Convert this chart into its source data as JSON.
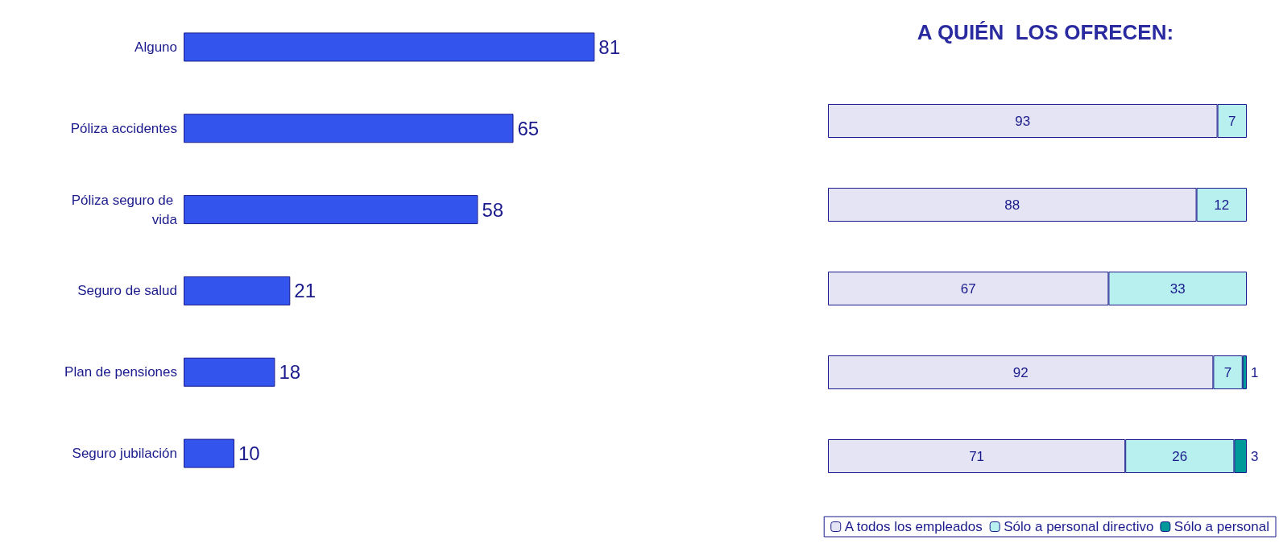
{
  "chart_data": [
    {
      "type": "bar",
      "orientation": "horizontal",
      "categories": [
        "Alguno",
        "Póliza accidentes",
        "Póliza seguro de vida",
        "Seguro de salud",
        "Plan de pensiones",
        "Seguro jubilación"
      ],
      "values": [
        81,
        65,
        58,
        21,
        18,
        10
      ],
      "color": "#3355ee",
      "data_labels": true,
      "legend": false
    },
    {
      "type": "bar",
      "orientation": "horizontal",
      "stacked": true,
      "title": "A QUIÉN  LOS OFRECEN:",
      "categories": [
        null,
        null,
        null,
        null,
        null
      ],
      "series": [
        {
          "name": "A todos los empleados",
          "color": "#e4e4f4",
          "values": [
            93,
            88,
            67,
            92,
            71
          ]
        },
        {
          "name": "Sólo a personal directivo",
          "color": "#b8f0f0",
          "values": [
            7,
            12,
            33,
            7,
            26
          ]
        },
        {
          "name": "Sólo a personal",
          "color": "#009999",
          "values": [
            null,
            null,
            null,
            1,
            3
          ]
        }
      ],
      "data_labels": true,
      "legend": "bottom"
    }
  ]
}
